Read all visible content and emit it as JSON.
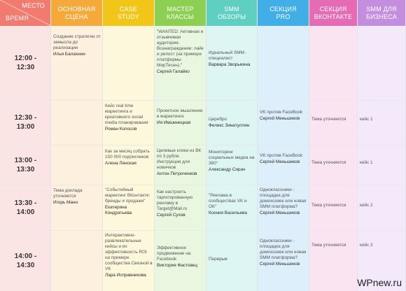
{
  "headers": {
    "place": "МЕСТО",
    "time": "ВРЕМЯ",
    "columns": [
      {
        "label": "ОСНОВНАЯ\nСЦЕНА",
        "color": "#f6a93b"
      },
      {
        "label": "CASE\nSTUDY",
        "color": "#f2c619"
      },
      {
        "label": "МАСТЕР\nКЛАССЫ",
        "color": "#8dcf52"
      },
      {
        "label": "SMM\nОБЗОРЫ",
        "color": "#5fcfc1"
      },
      {
        "label": "СЕКЦИЯ\nPRO",
        "color": "#41aee7"
      },
      {
        "label": "СЕКЦИЯ\nВКОНТАКТЕ",
        "color": "#e46bb4"
      },
      {
        "label": "SMM ДЛЯ\nБИЗНЕСА",
        "color": "#c38ee0"
      }
    ]
  },
  "column_tints": [
    "#fdf0de",
    "#fdf7dc",
    "#eaf7e0",
    "#def6f3",
    "#ddeffb",
    "#fbe4f1",
    "#f4e8fb"
  ],
  "time_tint": "#fbe4e4",
  "rows": [
    {
      "time": [
        "12:00 -",
        "12:30"
      ],
      "cells": [
        {
          "text": "Создание стратегии от замысла до реализации",
          "speaker": "Илья Балахнин"
        },
        null,
        {
          "text": "\"WANTED: Активная и отзывчивая аудитория. Вознаграждение: лайк и репост (на примере платформы МирТесен).\"",
          "speaker": "Сергей Галайко"
        },
        {
          "text": "Идеальный SMM-специалист",
          "speaker": "Варвара Зворыкина"
        },
        null,
        null,
        null
      ]
    },
    {
      "time": [
        "12:30 -",
        "13:00"
      ],
      "cells": [
        null,
        {
          "text": "Кейс real time маркетинга и креативного social media планирования",
          "speaker": "Роман Колосов"
        },
        {
          "text": "Проектное мышление в маркетинге",
          "speaker": "Ия Имшинецкая"
        },
        {
          "text": "Церебро",
          "speaker": "Феликс Зинатуллин"
        },
        {
          "text": "VK против FaceBook",
          "speaker": "Сергей Меньшиков"
        },
        {
          "text": "Тема уточняется",
          "speaker": ""
        },
        {
          "text": "кейс 1",
          "speaker": ""
        }
      ]
    },
    {
      "time": [
        "13:00 -",
        "13:30"
      ],
      "cells": [
        null,
        {
          "text": "Как за месяц собрать 150 000 подписчиков",
          "speaker": "Алена Ленская"
        },
        {
          "text": "Целевые клики из ВК по 3 рубля. Инструкция для новичков",
          "speaker": "Антон Петроченков"
        },
        {
          "text": "Мониторинг социальных медиа на 360°",
          "speaker": "Александр Сирач"
        },
        {
          "text": "VK против FaceBook",
          "speaker": "Сергей Меньшиков"
        },
        {
          "text": "Тема уточняется",
          "speaker": ""
        },
        {
          "text": "кейс 1",
          "speaker": ""
        }
      ]
    },
    {
      "time": [
        "13:30 -",
        "14:00"
      ],
      "cells": [
        {
          "text": "Тема доклада уточняется",
          "speaker": "Игорь Манн"
        },
        {
          "text": "\"Событийный маркетинг ВКонтакте: бренды и продажи\"",
          "speaker": "Екатерина Кондратьева"
        },
        {
          "text": "Как настроить таргетированную рекламу в Target@Mail.ru",
          "speaker": "Сергей Сухов"
        },
        {
          "text": "\"Реклама в сообществах VK и OK\"",
          "speaker": "Ксения Васильева"
        },
        {
          "text": "Одноклассники - площадка для домохозяек или новая SMM платформа?",
          "speaker": "Сергей Меньшиков"
        },
        {
          "text": "Тема уточняется",
          "speaker": ""
        },
        {
          "text": "кейс 2",
          "speaker": ""
        }
      ]
    },
    {
      "time": [
        "14:00 -",
        "14:30"
      ],
      "cells": [
        null,
        {
          "text": "Интерактивно-развлекательные кейсы и их эффективность ROI на примере сообщества Связной в VK",
          "speaker": "Лара Исправникова"
        },
        {
          "text": "Эффективное продвижение на Facebook",
          "speaker": "Виктория Фастовец"
        },
        {
          "text": "Перерыв",
          "speaker": ""
        },
        {
          "text": "Одноклассники - площадка для домохозяек или новая SMM платформа?",
          "speaker": "Сергей Меньшиков"
        },
        {
          "text": "Тема уточняется",
          "speaker": ""
        },
        {
          "text": "кейс 2",
          "speaker": ""
        }
      ]
    }
  ],
  "watermark": "WPnew.ru"
}
